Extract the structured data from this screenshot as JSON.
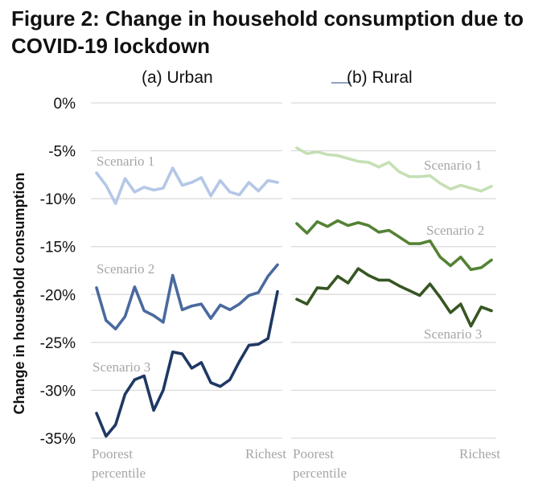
{
  "figure_title": "Figure 2: Change in household consumption due to COVID-19 lockdown",
  "chart_data": {
    "type": "line",
    "ylabel": "Change in household consumption",
    "ylim": [
      -35,
      0
    ],
    "yticks": [
      0,
      -5,
      -10,
      -15,
      -20,
      -25,
      -30,
      -35
    ],
    "ytick_labels": [
      "0%",
      "-5%",
      "-10%",
      "-15%",
      "-20%",
      "-25%",
      "-30%",
      "-35%"
    ],
    "panels": [
      {
        "title": "(a) Urban",
        "xlabel_left": [
          "Poorest",
          "percentile"
        ],
        "xlabel_right": "Richest",
        "series": [
          {
            "name": "Scenario 1",
            "color": "#b4c7e7",
            "values": [
              -7.3,
              -8.6,
              -10.5,
              -7.9,
              -9.3,
              -8.8,
              -9.1,
              -8.9,
              -6.8,
              -8.6,
              -8.3,
              -7.8,
              -9.7,
              -8.1,
              -9.3,
              -9.6,
              -8.3,
              -9.2,
              -8.1,
              -8.3
            ]
          },
          {
            "name": "Scenario 2",
            "color": "#4a6a9e",
            "values": [
              -19.3,
              -22.7,
              -23.6,
              -22.3,
              -19.2,
              -21.7,
              -22.2,
              -22.9,
              -18.0,
              -21.6,
              -21.2,
              -21.0,
              -22.5,
              -21.1,
              -21.6,
              -21.0,
              -20.1,
              -19.8,
              -18.1,
              -16.9
            ]
          },
          {
            "name": "Scenario 3",
            "color": "#1f3864",
            "values": [
              -32.4,
              -34.8,
              -33.6,
              -30.4,
              -28.9,
              -28.5,
              -32.1,
              -30.0,
              -26.0,
              -26.2,
              -27.7,
              -27.1,
              -29.2,
              -29.6,
              -28.9,
              -27.0,
              -25.3,
              -25.2,
              -24.6,
              -19.7
            ]
          }
        ]
      },
      {
        "title": "(b) Rural",
        "xlabel_left": [
          "Poorest",
          "percentile"
        ],
        "xlabel_right": "Richest",
        "series": [
          {
            "name": "Scenario 1",
            "color": "#c5e0b4",
            "values": [
              -4.7,
              -5.3,
              -5.1,
              -5.4,
              -5.5,
              -5.8,
              -6.1,
              -6.2,
              -6.7,
              -6.2,
              -7.2,
              -7.7,
              -7.7,
              -7.6,
              -8.4,
              -9.0,
              -8.6,
              -8.9,
              -9.2,
              -8.7
            ]
          },
          {
            "name": "Scenario 2",
            "color": "#548235",
            "values": [
              -12.6,
              -13.6,
              -12.4,
              -12.9,
              -12.3,
              -12.8,
              -12.5,
              -12.8,
              -13.5,
              -13.3,
              -14.0,
              -14.7,
              -14.7,
              -14.4,
              -16.1,
              -17.0,
              -16.1,
              -17.4,
              -17.2,
              -16.4
            ]
          },
          {
            "name": "Scenario 3",
            "color": "#375623",
            "values": [
              -20.5,
              -21.0,
              -19.3,
              -19.4,
              -18.1,
              -18.8,
              -17.3,
              -18.0,
              -18.5,
              -18.5,
              -19.1,
              -19.6,
              -20.1,
              -18.9,
              -20.3,
              -21.9,
              -21.0,
              -23.3,
              -21.3,
              -21.7
            ]
          }
        ]
      }
    ]
  }
}
